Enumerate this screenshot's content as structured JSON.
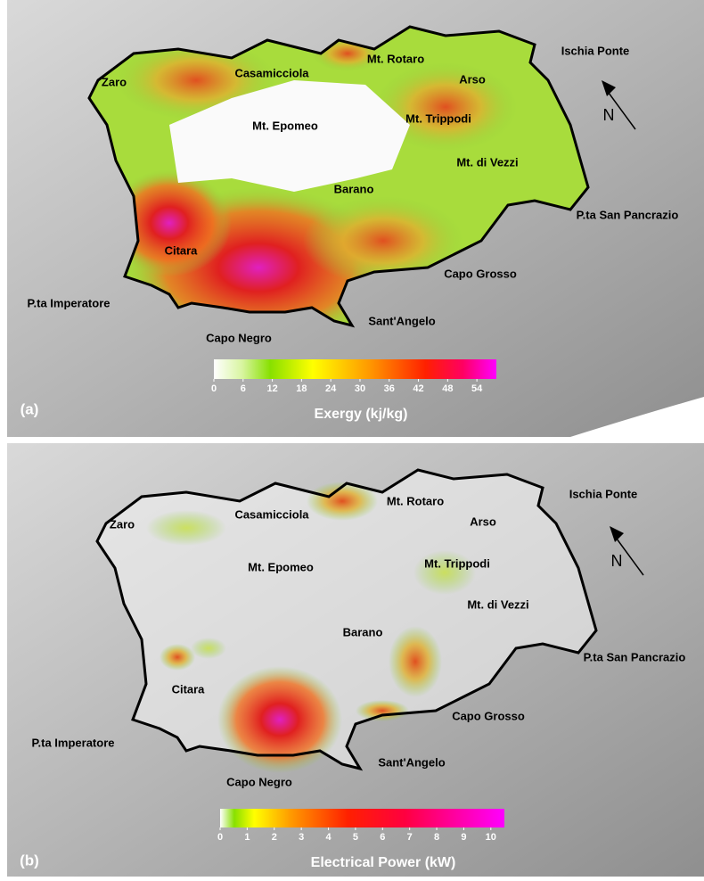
{
  "panels": [
    {
      "label": "(a)",
      "legend": {
        "title": "Exergy (kj/kg)",
        "range": [
          0,
          58
        ],
        "ticks": [
          0,
          6,
          12,
          18,
          24,
          30,
          36,
          42,
          48,
          54
        ]
      },
      "north": "N",
      "places": [
        "Zaro",
        "Casamicciola",
        "Mt. Rotaro",
        "Arso",
        "Ischia Ponte",
        "Mt. Epomeo",
        "Mt. Trippodi",
        "Mt. di Vezzi",
        "Barano",
        "P.ta San Pancrazio",
        "Citara",
        "Capo Grosso",
        "P.ta Imperatore",
        "Sant'Angelo",
        "Capo Negro"
      ]
    },
    {
      "label": "(b)",
      "legend": {
        "title": "Electrical Power (kW)",
        "range": [
          0,
          10.5
        ],
        "ticks": [
          0,
          1,
          2,
          3,
          4,
          5,
          6,
          7,
          8,
          9,
          10
        ]
      },
      "north": "N",
      "places": [
        "Zaro",
        "Casamicciola",
        "Mt. Rotaro",
        "Arso",
        "Ischia Ponte",
        "Mt. Epomeo",
        "Mt. Trippodi",
        "Mt. di Vezzi",
        "Barano",
        "P.ta San Pancrazio",
        "Citara",
        "Capo Grosso",
        "P.ta Imperatore",
        "Sant'Angelo",
        "Capo Negro"
      ]
    }
  ]
}
